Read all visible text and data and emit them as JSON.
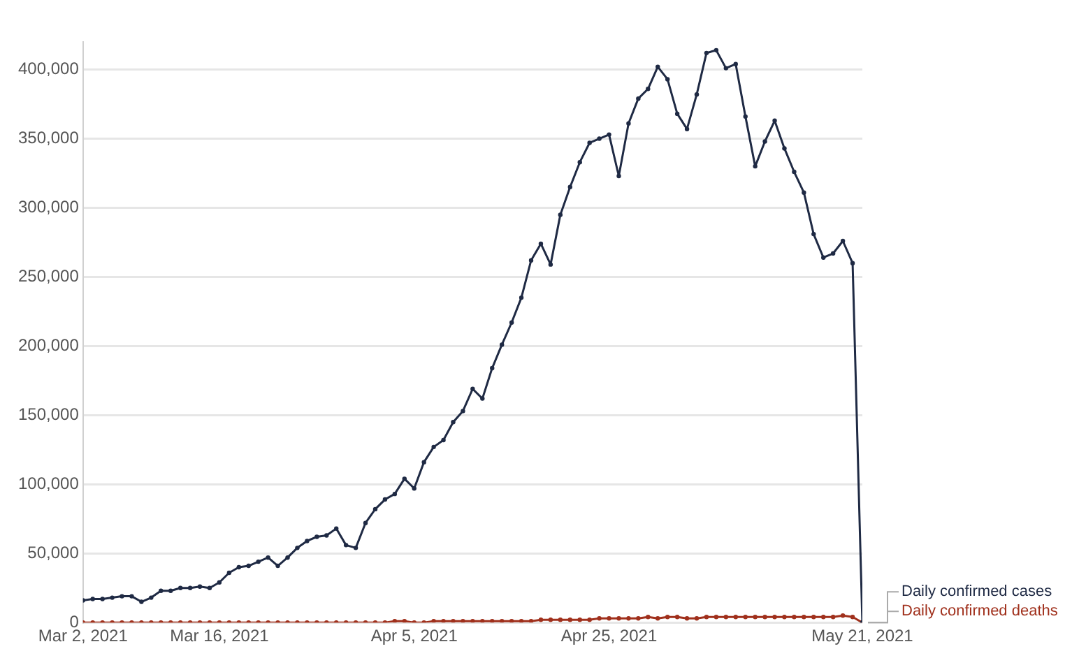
{
  "chart_data": {
    "type": "line",
    "x": [
      "2021-03-02",
      "2021-03-03",
      "2021-03-04",
      "2021-03-05",
      "2021-03-06",
      "2021-03-07",
      "2021-03-08",
      "2021-03-09",
      "2021-03-10",
      "2021-03-11",
      "2021-03-12",
      "2021-03-13",
      "2021-03-14",
      "2021-03-15",
      "2021-03-16",
      "2021-03-17",
      "2021-03-18",
      "2021-03-19",
      "2021-03-20",
      "2021-03-21",
      "2021-03-22",
      "2021-03-23",
      "2021-03-24",
      "2021-03-25",
      "2021-03-26",
      "2021-03-27",
      "2021-03-28",
      "2021-03-29",
      "2021-03-30",
      "2021-03-31",
      "2021-04-01",
      "2021-04-02",
      "2021-04-03",
      "2021-04-04",
      "2021-04-05",
      "2021-04-06",
      "2021-04-07",
      "2021-04-08",
      "2021-04-09",
      "2021-04-10",
      "2021-04-11",
      "2021-04-12",
      "2021-04-13",
      "2021-04-14",
      "2021-04-15",
      "2021-04-16",
      "2021-04-17",
      "2021-04-18",
      "2021-04-19",
      "2021-04-20",
      "2021-04-21",
      "2021-04-22",
      "2021-04-23",
      "2021-04-24",
      "2021-04-25",
      "2021-04-26",
      "2021-04-27",
      "2021-04-28",
      "2021-04-29",
      "2021-04-30",
      "2021-05-01",
      "2021-05-02",
      "2021-05-03",
      "2021-05-04",
      "2021-05-05",
      "2021-05-06",
      "2021-05-07",
      "2021-05-08",
      "2021-05-09",
      "2021-05-10",
      "2021-05-11",
      "2021-05-12",
      "2021-05-13",
      "2021-05-14",
      "2021-05-15",
      "2021-05-16",
      "2021-05-17",
      "2021-05-18",
      "2021-05-19",
      "2021-05-20",
      "2021-05-21"
    ],
    "series": [
      {
        "name": "Daily confirmed cases",
        "color": "#1f2a44",
        "values": [
          16000,
          17000,
          17000,
          18000,
          19000,
          19000,
          15000,
          18000,
          23000,
          23000,
          25000,
          25000,
          26000,
          25000,
          29000,
          36000,
          40000,
          41000,
          44000,
          47000,
          41000,
          47000,
          54000,
          59000,
          62000,
          63000,
          68000,
          56000,
          54000,
          72000,
          82000,
          89000,
          93000,
          104000,
          97000,
          116000,
          127000,
          132000,
          145000,
          153000,
          169000,
          162000,
          184000,
          201000,
          217000,
          235000,
          262000,
          274000,
          259000,
          295000,
          315000,
          333000,
          347000,
          350000,
          353000,
          323000,
          361000,
          379000,
          386000,
          402000,
          393000,
          368000,
          357000,
          382000,
          412000,
          414000,
          401000,
          404000,
          366000,
          330000,
          348000,
          363000,
          343000,
          326000,
          311000,
          281000,
          264000,
          267000,
          276000,
          260000,
          0
        ]
      },
      {
        "name": "Daily confirmed deaths",
        "color": "#a0301c",
        "values": [
          0,
          0,
          0,
          0,
          0,
          0,
          0,
          0,
          0,
          0,
          0,
          0,
          0,
          0,
          0,
          0,
          0,
          0,
          0,
          0,
          0,
          0,
          0,
          0,
          0,
          0,
          0,
          0,
          0,
          0,
          0,
          0,
          1000,
          1000,
          0,
          0,
          1000,
          1000,
          1000,
          1000,
          1000,
          1000,
          1000,
          1000,
          1000,
          1000,
          1000,
          2000,
          2000,
          2000,
          2000,
          2000,
          2000,
          3000,
          3000,
          3000,
          3000,
          3000,
          4000,
          3000,
          4000,
          4000,
          3000,
          3000,
          4000,
          4000,
          4000,
          4000,
          4000,
          4000,
          4000,
          4000,
          4000,
          4000,
          4000,
          4000,
          4000,
          4000,
          5000,
          4000,
          0
        ]
      }
    ],
    "xlim": [
      "2021-03-02",
      "2021-05-21"
    ],
    "xticks": [
      {
        "value": "2021-03-02",
        "label": "Mar 2, 2021"
      },
      {
        "value": "2021-03-16",
        "label": "Mar 16, 2021"
      },
      {
        "value": "2021-04-05",
        "label": "Apr 5, 2021"
      },
      {
        "value": "2021-04-25",
        "label": "Apr 25, 2021"
      },
      {
        "value": "2021-05-21",
        "label": "May 21, 2021"
      }
    ],
    "ylim": [
      0,
      420000
    ],
    "yticks": [
      0,
      {
        "value": 50000,
        "label": "50,000"
      },
      {
        "value": 100000,
        "label": "100,000"
      },
      {
        "value": 150000,
        "label": "150,000"
      },
      {
        "value": 200000,
        "label": "200,000"
      },
      {
        "value": 250000,
        "label": "250,000"
      },
      {
        "value": 300000,
        "label": "300,000"
      },
      {
        "value": 350000,
        "label": "350,000"
      },
      {
        "value": 400000,
        "label": "400,000"
      }
    ],
    "grid": "y",
    "legend": "right",
    "marker": "circle",
    "line_style": "solid"
  }
}
